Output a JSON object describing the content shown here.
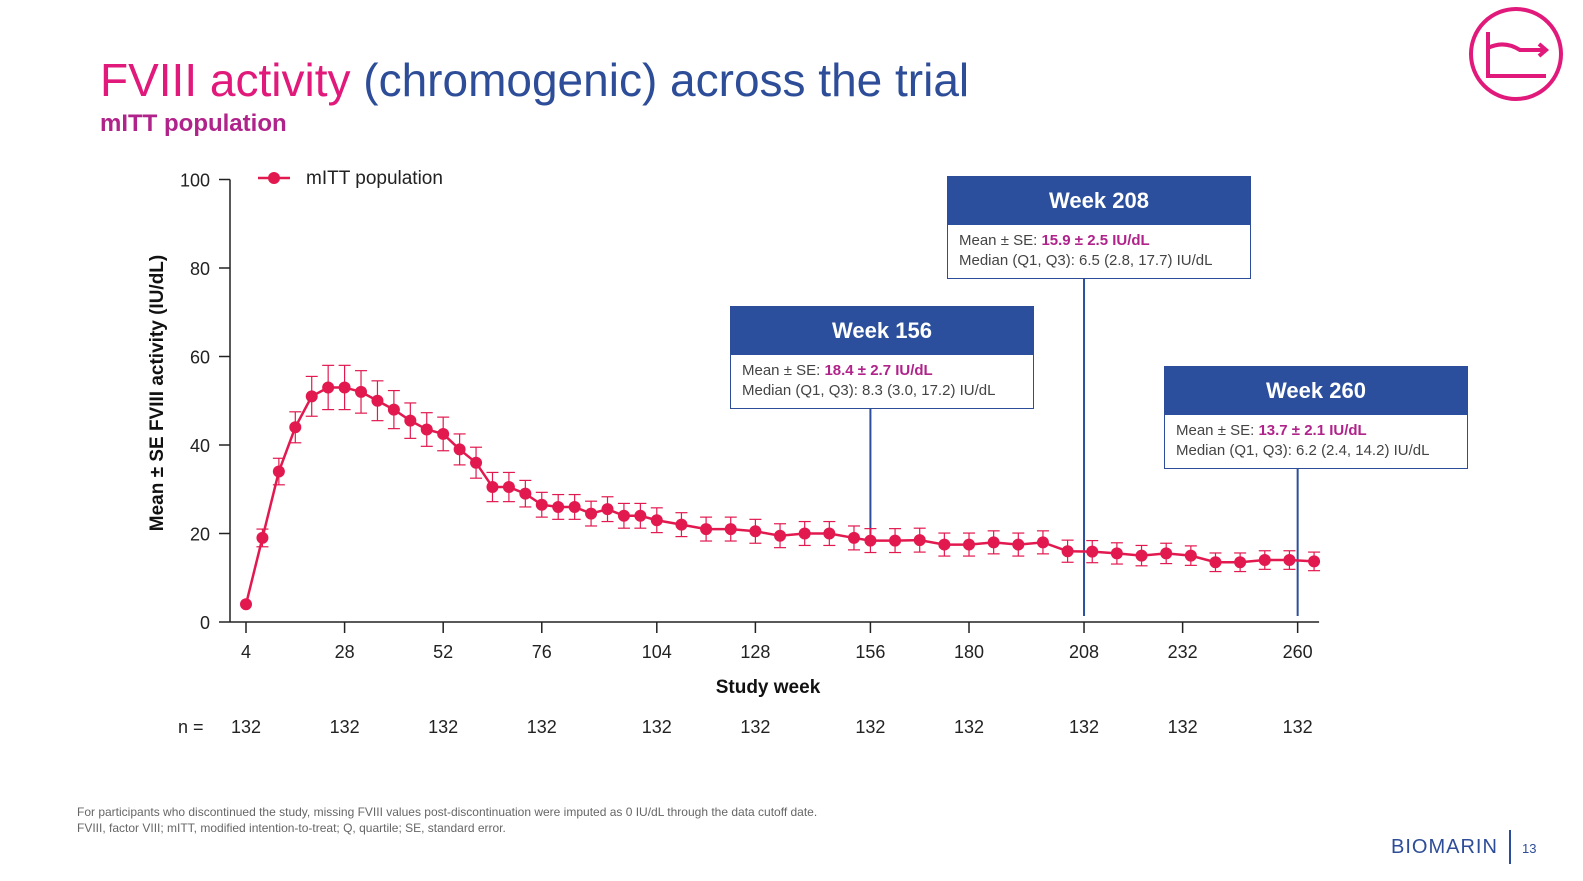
{
  "slide": {
    "title_part1": "FVIII activity",
    "title_part2": "(chromogenic) across the trial",
    "subtitle": "mITT population",
    "footnote_line1": "For participants who discontinued the study, missing FVIII values post-discontinuation were imputed as 0 IU/dL through the data cutoff date.",
    "footnote_line2": "FVIII, factor VIII; mITT, modified intention-to-treat; Q, quartile; SE, standard error.",
    "brand": "BIOMARIN",
    "page_number": "13",
    "colors": {
      "title_pink": "#e0197b",
      "title_blue": "#2e4d98",
      "subtitle_purple": "#b0238a",
      "series_red": "#e2194f",
      "callout_blue": "#2b4f9c"
    },
    "icons": [
      "timeline-logo-icon"
    ]
  },
  "chart_data": {
    "type": "line",
    "xlabel": "Study week",
    "ylabel": "Mean ± SE FVIII activity (IU/dL)",
    "ylim": [
      0,
      100
    ],
    "yticks": [
      0,
      20,
      40,
      60,
      80,
      100
    ],
    "xlim": [
      4,
      264
    ],
    "xticks": [
      4,
      28,
      52,
      76,
      104,
      128,
      156,
      180,
      208,
      232,
      260
    ],
    "legend_position": "top-left",
    "n_label": "n =",
    "n_values": [
      "132",
      "132",
      "132",
      "132",
      "132",
      "132",
      "132",
      "132",
      "132",
      "132",
      "132"
    ],
    "series": [
      {
        "name": "mITT population",
        "color": "#e2194f",
        "x": [
          4,
          8,
          12,
          16,
          20,
          24,
          28,
          32,
          36,
          40,
          44,
          48,
          52,
          56,
          60,
          64,
          68,
          72,
          76,
          80,
          84,
          88,
          92,
          96,
          100,
          104,
          110,
          116,
          122,
          128,
          134,
          140,
          146,
          152,
          156,
          162,
          168,
          174,
          180,
          186,
          192,
          198,
          204,
          210,
          216,
          222,
          228,
          234,
          240,
          246,
          252,
          258,
          264
        ],
        "y": [
          4,
          19,
          34,
          44,
          51,
          53,
          53,
          52,
          50,
          48,
          45.5,
          43.5,
          42.5,
          39,
          36,
          30.5,
          30.5,
          29,
          26.5,
          26,
          26,
          24.5,
          25.5,
          24,
          24,
          23,
          22,
          21,
          21,
          20.5,
          19.5,
          20,
          20,
          19,
          18.4,
          18.4,
          18.5,
          17.5,
          17.5,
          18,
          17.5,
          18,
          16,
          15.9,
          15.5,
          15,
          15.5,
          15,
          13.5,
          13.5,
          14,
          14,
          13.7
        ],
        "se": [
          0,
          2,
          3,
          3.5,
          4.5,
          5,
          5,
          4.8,
          4.5,
          4.3,
          4,
          3.8,
          3.8,
          3.5,
          3.5,
          3.3,
          3.3,
          3,
          2.8,
          2.8,
          2.8,
          2.8,
          2.8,
          2.8,
          2.8,
          2.8,
          2.7,
          2.7,
          2.7,
          2.7,
          2.7,
          2.7,
          2.7,
          2.7,
          2.7,
          2.7,
          2.7,
          2.6,
          2.6,
          2.6,
          2.6,
          2.6,
          2.5,
          2.5,
          2.4,
          2.3,
          2.3,
          2.2,
          2.1,
          2.1,
          2.1,
          2.1,
          2.1
        ]
      }
    ],
    "annotations": [
      {
        "week": 156,
        "header": "Week 156",
        "mean_label": "Mean ± SE: ",
        "mean_value": "18.4 ± 2.7 IU/dL",
        "median_text": "Median (Q1, Q3): 8.3 (3.0, 17.2) IU/dL"
      },
      {
        "week": 208,
        "header": "Week 208",
        "mean_label": "Mean ± SE: ",
        "mean_value": "15.9 ± 2.5 IU/dL",
        "median_text": "Median (Q1, Q3): 6.5 (2.8, 17.7) IU/dL"
      },
      {
        "week": 260,
        "header": "Week 260",
        "mean_label": "Mean ± SE: ",
        "mean_value": "13.7 ± 2.1 IU/dL",
        "median_text": "Median (Q1, Q3): 6.2 (2.4, 14.2) IU/dL"
      }
    ]
  }
}
